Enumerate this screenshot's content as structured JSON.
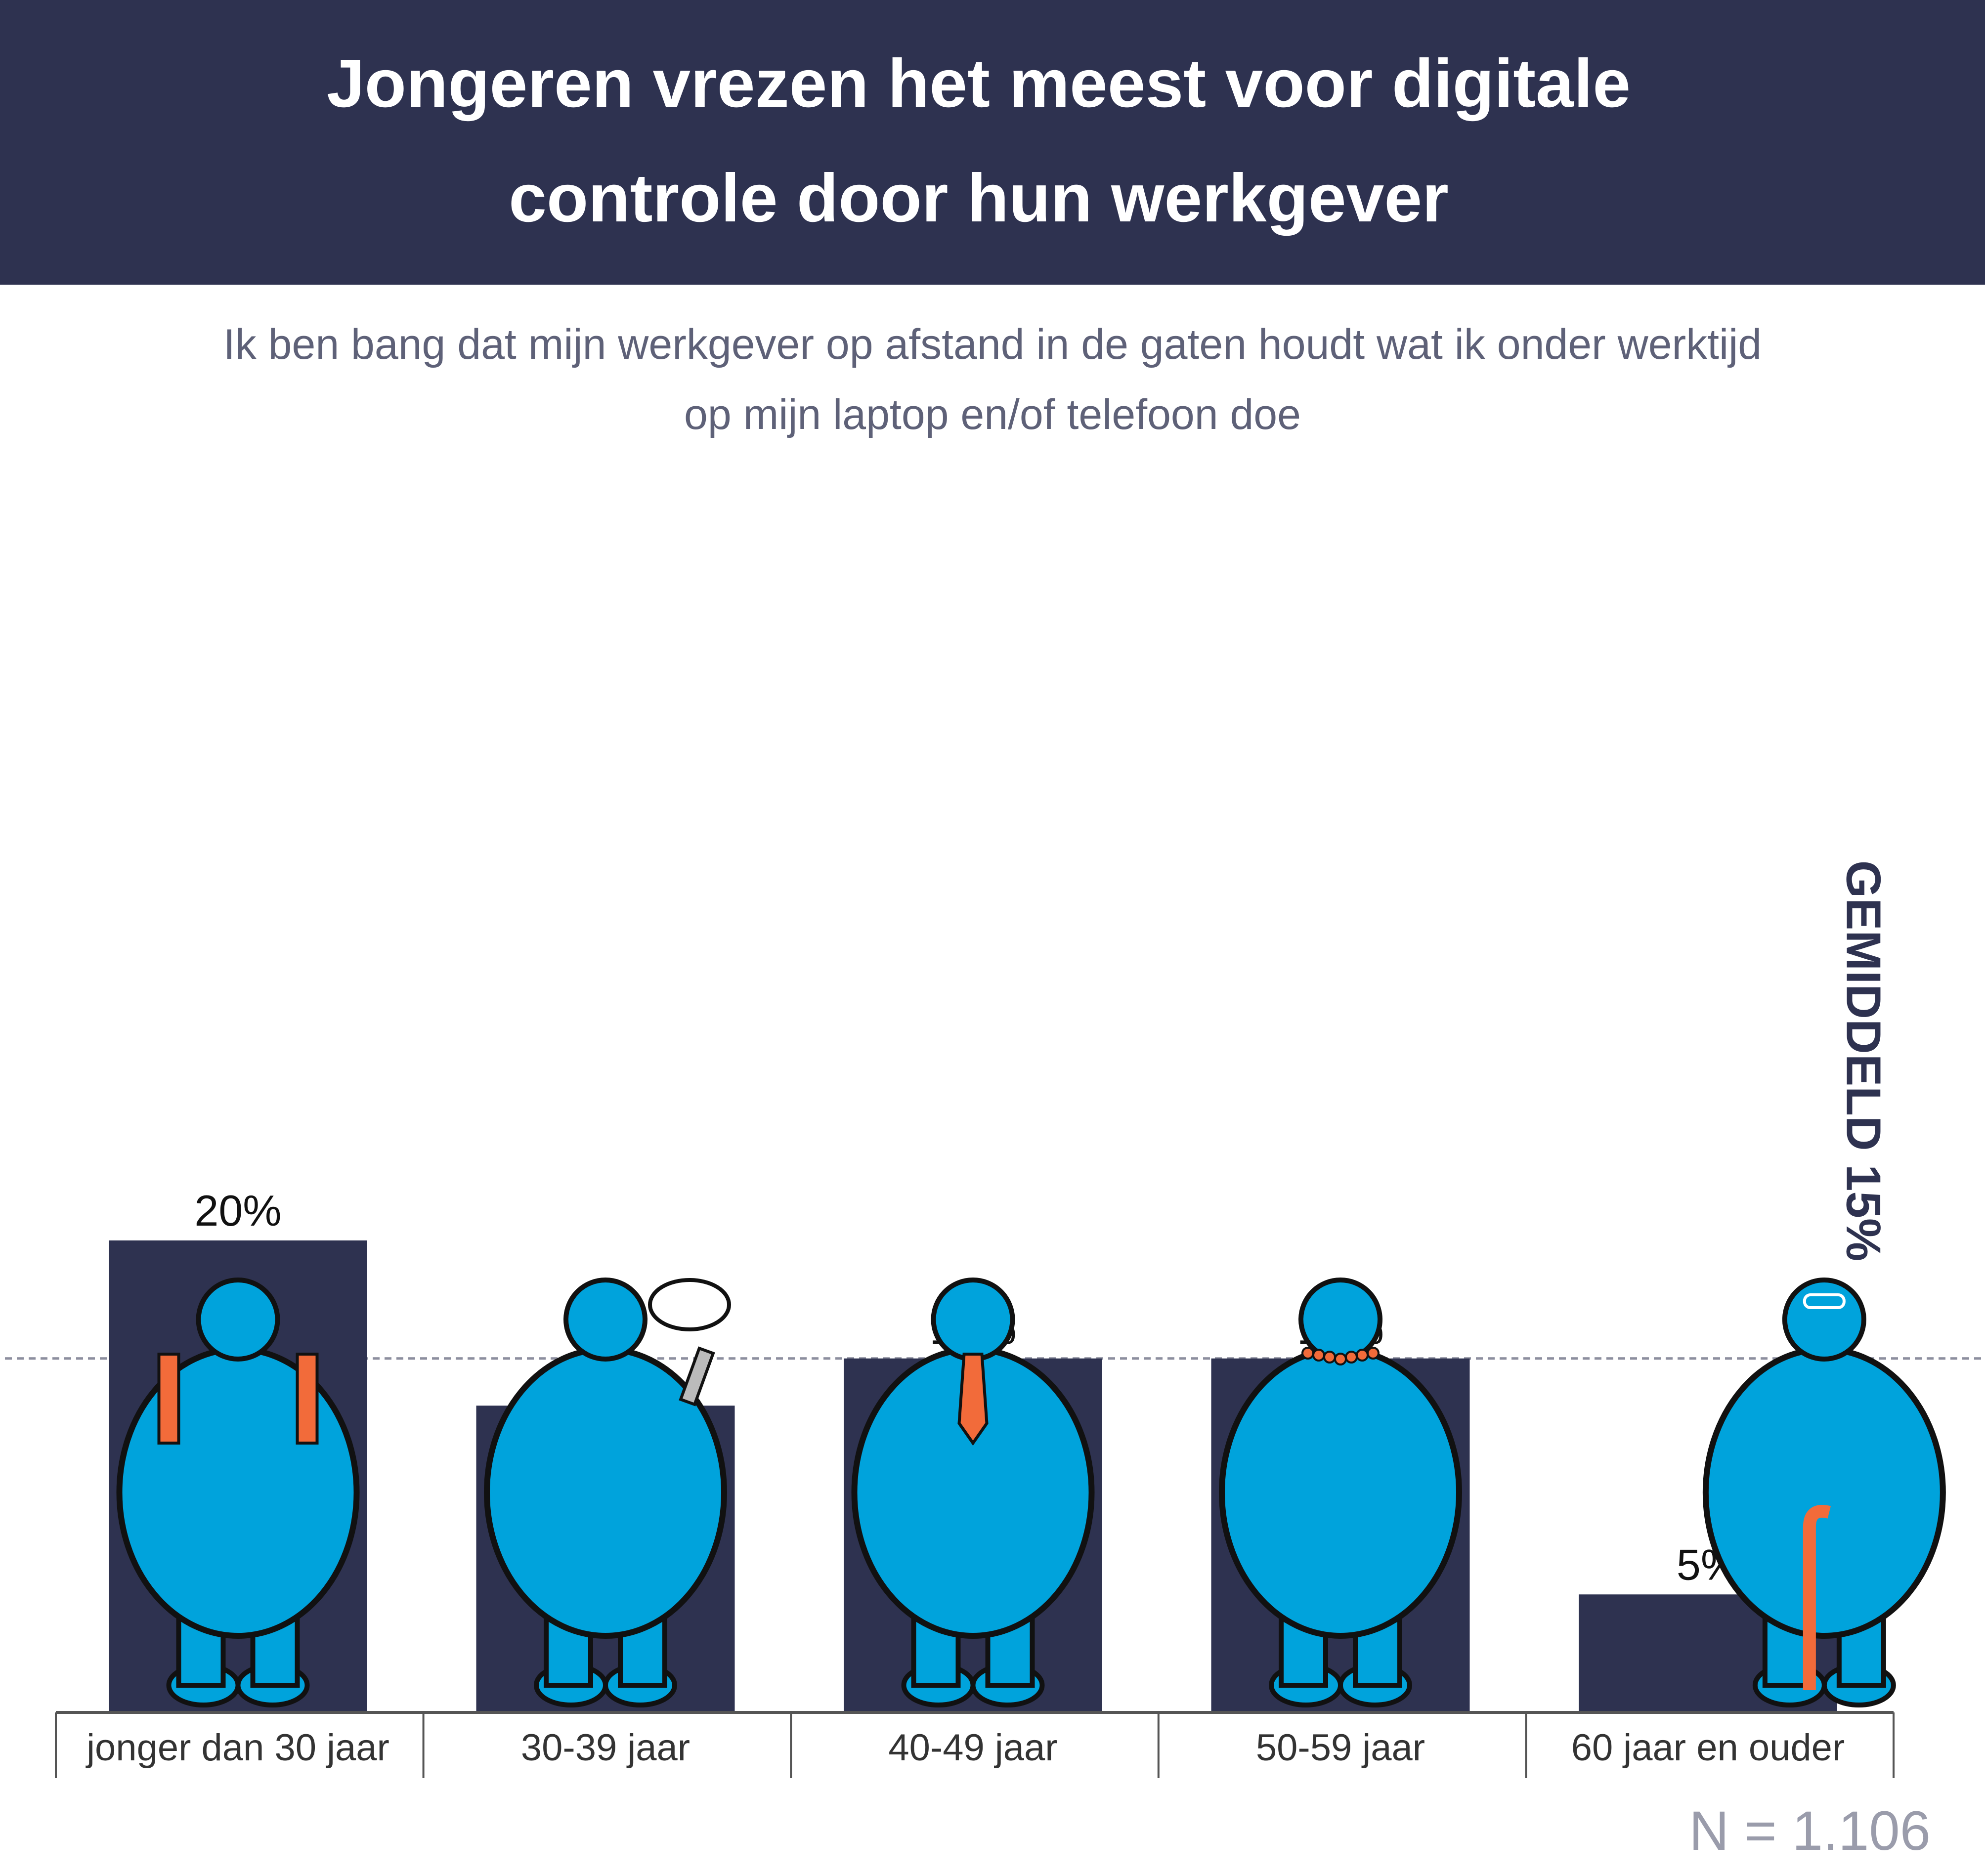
{
  "header": {
    "title_line1": "Jongeren vrezen het meest voor digitale",
    "title_line2": "controle door hun werkgever"
  },
  "subtitle": {
    "line1": "Ik ben bang dat mijn werkgever op afstand in de gaten houdt wat ik onder werktijd",
    "line2": "op mijn laptop en/of telefoon doe"
  },
  "chart_data": {
    "type": "bar",
    "title": "Jongeren vrezen het meest voor digitale controle door hun werkgever",
    "categories": [
      "jonger dan 30 jaar",
      "30-39 jaar",
      "40-49 jaar",
      "50-59 jaar",
      "60 jaar en ouder"
    ],
    "values": [
      20,
      13,
      15,
      15,
      5
    ],
    "value_labels": [
      "20%",
      "13%",
      "15%",
      "15%",
      "5%"
    ],
    "unit": "%",
    "ylim": [
      0,
      20
    ],
    "average": {
      "value": 15,
      "label": "GEMIDDELD 15%"
    },
    "grid": false,
    "xlabel": "",
    "ylabel": ""
  },
  "footer": {
    "sample": "N = 1.106"
  },
  "colors": {
    "bar": "#2e3250",
    "figure": "#00a3dc",
    "accent": "#f26b3a",
    "axis": "#555555"
  }
}
